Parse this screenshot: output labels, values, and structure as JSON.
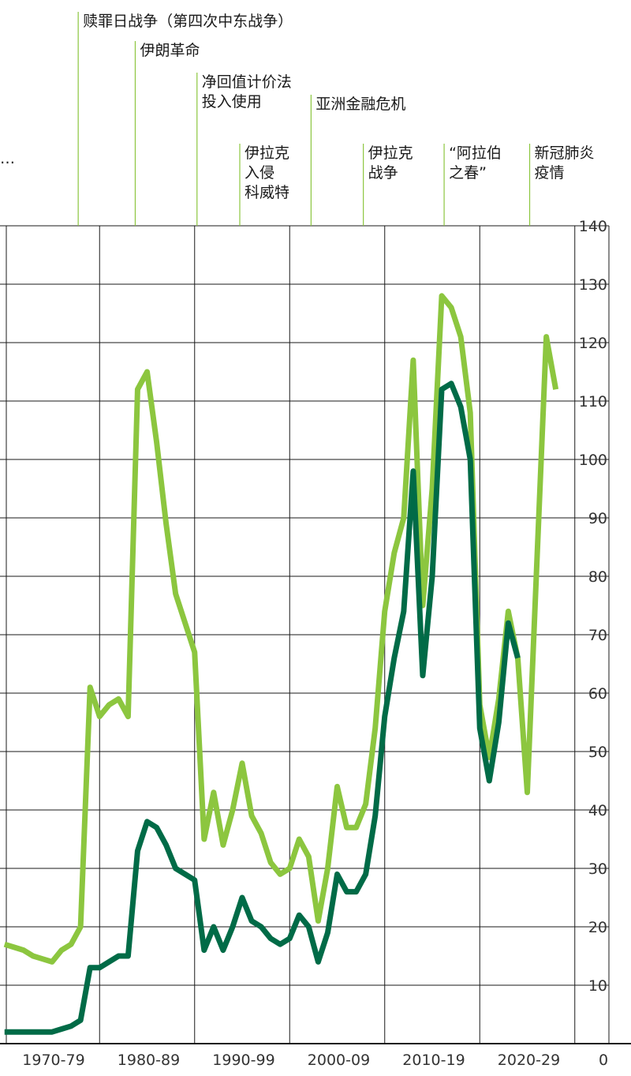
{
  "chart_data": {
    "type": "line",
    "x_categories": [
      "1970-79",
      "1980-89",
      "1990-99",
      "2000-09",
      "2010-19",
      "2020-29"
    ],
    "y_ticks": [
      "0",
      "10",
      "20",
      "30",
      "40",
      "50",
      "60",
      "70",
      "80",
      "90",
      "100",
      "110",
      "120",
      "130",
      "140"
    ],
    "ylim": [
      0,
      140
    ],
    "xlim": [
      1965,
      2027
    ],
    "grid": true,
    "colors": {
      "series_real": "#8cc63f",
      "series_nominal": "#006b47",
      "grid": "#1a1a1a",
      "vline": "#8cc63f"
    },
    "series": [
      {
        "key": "real",
        "x": [
          1965,
          1966,
          1967,
          1968,
          1969,
          1970,
          1971,
          1972,
          1973,
          1974,
          1975,
          1976,
          1977,
          1978,
          1979,
          1980,
          1981,
          1982,
          1983,
          1984,
          1985,
          1986,
          1987,
          1988,
          1989,
          1990,
          1991,
          1992,
          1993,
          1994,
          1995,
          1996,
          1997,
          1998,
          1999,
          2000,
          2001,
          2002,
          2003,
          2004,
          2005,
          2006,
          2007,
          2008,
          2009,
          2010,
          2011,
          2012,
          2013,
          2014,
          2015,
          2016,
          2017,
          2018,
          2019,
          2020,
          2021,
          2022,
          2023
        ],
        "values": [
          17,
          16.5,
          16,
          15,
          14.5,
          14,
          16,
          17,
          20,
          61,
          56,
          58,
          59,
          56,
          112,
          115,
          103,
          89,
          77,
          72,
          67,
          35,
          43,
          34,
          40,
          48,
          39,
          36,
          31,
          29,
          30,
          35,
          32,
          21,
          30,
          44,
          37,
          37,
          41,
          54,
          74,
          84,
          90,
          117,
          75,
          95,
          128,
          126,
          121,
          108,
          58,
          49,
          59,
          74,
          66,
          43,
          82,
          121,
          112
        ]
      },
      {
        "key": "nominal",
        "x": [
          1965,
          1966,
          1967,
          1968,
          1969,
          1970,
          1971,
          1972,
          1973,
          1974,
          1975,
          1976,
          1977,
          1978,
          1979,
          1980,
          1981,
          1982,
          1983,
          1984,
          1985,
          1986,
          1987,
          1988,
          1989,
          1990,
          1991,
          1992,
          1993,
          1994,
          1995,
          1996,
          1997,
          1998,
          1999,
          2000,
          2001,
          2002,
          2003,
          2004,
          2005,
          2006,
          2007,
          2008,
          2009,
          2010,
          2011,
          2012,
          2013,
          2014,
          2015,
          2016,
          2017,
          2018,
          2019
        ],
        "values": [
          2,
          2,
          2,
          2,
          2,
          2,
          2.5,
          3,
          4,
          13,
          13,
          14,
          15,
          15,
          33,
          38,
          37,
          34,
          30,
          29,
          28,
          16,
          20,
          16,
          20,
          25,
          21,
          20,
          18,
          17,
          18,
          22,
          20,
          14,
          19,
          29,
          26,
          26,
          29,
          39,
          56,
          66,
          74,
          98,
          63,
          80,
          112,
          113,
          109,
          100,
          54,
          45,
          55,
          72,
          66
        ]
      }
    ],
    "annotations": [
      {
        "year": 1967,
        "lines": [
          "…"
        ]
      },
      {
        "year": 1973,
        "lines": [
          "赎罪日战争（第四次中东战争）"
        ]
      },
      {
        "year": 1979,
        "lines": [
          "伊朗革命"
        ]
      },
      {
        "year": 1985.5,
        "lines": [
          "净回值计价法",
          "投入使用"
        ]
      },
      {
        "year": 1990,
        "lines": [
          "伊拉克",
          "入侵",
          "科威特"
        ]
      },
      {
        "year": 1997.5,
        "lines": [
          "亚洲金融危机"
        ]
      },
      {
        "year": 2003,
        "lines": [
          "伊拉克",
          "战争"
        ]
      },
      {
        "year": 2011.5,
        "lines": [
          "“阿拉伯",
          "之春”"
        ]
      },
      {
        "year": 2020.5,
        "lines": [
          "新冠肺炎",
          "疫情"
        ]
      }
    ]
  }
}
